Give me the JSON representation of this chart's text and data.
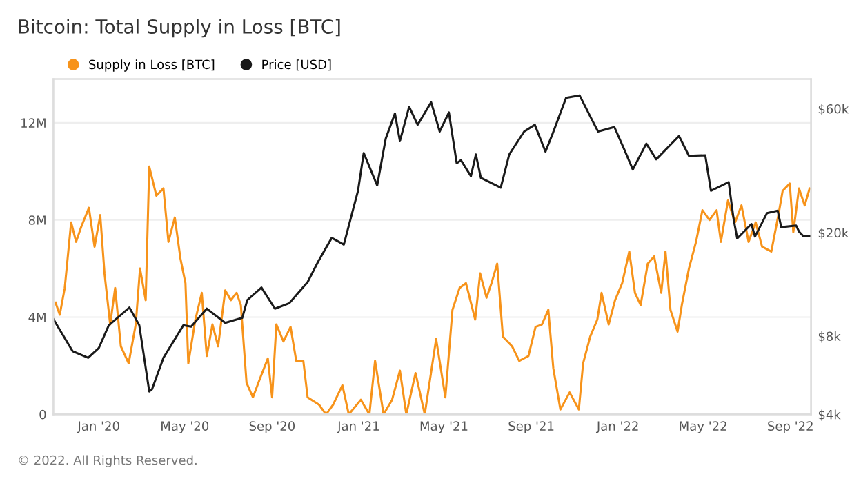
{
  "chart_data": {
    "type": "line",
    "title": "Bitcoin: Total Supply in Loss [BTC]",
    "annotations": [
      "© 2022. All Rights Reserved."
    ],
    "xlim": [
      "2019-10-29",
      "2022-09-30"
    ],
    "xticks": [
      {
        "value": "2020-01-01",
        "label": "Jan '20"
      },
      {
        "value": "2020-05-01",
        "label": "May '20"
      },
      {
        "value": "2020-09-01",
        "label": "Sep '20"
      },
      {
        "value": "2021-01-01",
        "label": "Jan '21"
      },
      {
        "value": "2021-05-01",
        "label": "May '21"
      },
      {
        "value": "2021-09-01",
        "label": "Sep '21"
      },
      {
        "value": "2022-01-01",
        "label": "Jan '22"
      },
      {
        "value": "2022-05-01",
        "label": "May '22"
      },
      {
        "value": "2022-09-01",
        "label": "Sep '22"
      }
    ],
    "ylim": [
      0,
      13800000
    ],
    "yticks": [
      0,
      {
        "value": 4000000,
        "label": "4M"
      },
      {
        "value": 8000000,
        "label": "8M"
      },
      {
        "value": 12000000,
        "label": "12M"
      }
    ],
    "y2lim": [
      4000,
      78000
    ],
    "y2ticks": [
      {
        "value": 4000,
        "label": "$4k"
      },
      {
        "value": 8000,
        "label": "$8k"
      },
      {
        "value": 20000,
        "label": "$20k"
      },
      {
        "value": 60000,
        "label": "$60k"
      }
    ],
    "log": "y2",
    "grid": "y",
    "legend": "top left",
    "marker": "none",
    "line_style": "solid",
    "series": [
      {
        "name": "Supply in Loss [BTC]",
        "color": "#f7931a",
        "axis": "y",
        "x": [
          "2019-11-01",
          "2019-11-07",
          "2019-11-14",
          "2019-11-23",
          "2019-11-30",
          "2019-12-07",
          "2019-12-18",
          "2019-12-26",
          "2020-01-03",
          "2020-01-09",
          "2020-01-17",
          "2020-01-24",
          "2020-02-01",
          "2020-02-12",
          "2020-02-22",
          "2020-02-28",
          "2020-03-07",
          "2020-03-12",
          "2020-03-22",
          "2020-04-01",
          "2020-04-08",
          "2020-04-17",
          "2020-04-25",
          "2020-05-02",
          "2020-05-06",
          "2020-05-16",
          "2020-05-25",
          "2020-06-01",
          "2020-06-09",
          "2020-06-17",
          "2020-06-27",
          "2020-07-05",
          "2020-07-13",
          "2020-07-19",
          "2020-07-27",
          "2020-08-05",
          "2020-08-14",
          "2020-08-26",
          "2020-09-01",
          "2020-09-07",
          "2020-09-17",
          "2020-09-27",
          "2020-10-05",
          "2020-10-15",
          "2020-10-21",
          "2020-11-06",
          "2020-11-16",
          "2020-11-26",
          "2020-12-09",
          "2020-12-18",
          "2021-01-04",
          "2021-01-16",
          "2021-01-24",
          "2021-02-05",
          "2021-02-17",
          "2021-02-28",
          "2021-03-09",
          "2021-03-22",
          "2021-04-04",
          "2021-04-20",
          "2021-05-03",
          "2021-05-13",
          "2021-05-23",
          "2021-06-01",
          "2021-06-14",
          "2021-06-21",
          "2021-06-30",
          "2021-07-07",
          "2021-07-15",
          "2021-07-23",
          "2021-08-05",
          "2021-08-15",
          "2021-08-28",
          "2021-09-07",
          "2021-09-16",
          "2021-09-25",
          "2021-10-02",
          "2021-10-12",
          "2021-10-25",
          "2021-11-07",
          "2021-11-13",
          "2021-11-23",
          "2021-12-03",
          "2021-12-09",
          "2021-12-19",
          "2021-12-28",
          "2022-01-07",
          "2022-01-17",
          "2022-01-25",
          "2022-02-02",
          "2022-02-12",
          "2022-02-21",
          "2022-03-03",
          "2022-03-09",
          "2022-03-16",
          "2022-03-26",
          "2022-04-01",
          "2022-04-11",
          "2022-04-21",
          "2022-04-30",
          "2022-05-10",
          "2022-05-20",
          "2022-05-26",
          "2022-06-05",
          "2022-06-15",
          "2022-06-24",
          "2022-07-04",
          "2022-07-14",
          "2022-07-23",
          "2022-08-05",
          "2022-08-15",
          "2022-08-21",
          "2022-08-31",
          "2022-09-05",
          "2022-09-13",
          "2022-09-21",
          "2022-09-28"
        ],
        "values": [
          4600000,
          4100000,
          5200000,
          7900000,
          7100000,
          7700000,
          8500000,
          6900000,
          8200000,
          5800000,
          3700000,
          5200000,
          2800000,
          2100000,
          3700000,
          6000000,
          4700000,
          10200000,
          9000000,
          9300000,
          7100000,
          8100000,
          6400000,
          5400000,
          2100000,
          3900000,
          5000000,
          2400000,
          3700000,
          2800000,
          5100000,
          4700000,
          5000000,
          4500000,
          1300000,
          700000,
          1400000,
          2300000,
          700000,
          3700000,
          3000000,
          3600000,
          2200000,
          2200000,
          700000,
          400000,
          0,
          400000,
          1200000,
          0,
          600000,
          0,
          2200000,
          0,
          600000,
          1800000,
          0,
          1700000,
          0,
          3100000,
          700000,
          4300000,
          5200000,
          5400000,
          3900000,
          5800000,
          4800000,
          5400000,
          6200000,
          3200000,
          2800000,
          2200000,
          2400000,
          3600000,
          3700000,
          4300000,
          1900000,
          200000,
          900000,
          200000,
          2100000,
          3200000,
          3900000,
          5000000,
          3700000,
          4700000,
          5400000,
          6700000,
          5000000,
          4500000,
          6200000,
          6500000,
          5000000,
          6700000,
          4300000,
          3400000,
          4500000,
          6000000,
          7100000,
          8400000,
          8000000,
          8400000,
          7100000,
          8800000,
          7900000,
          8600000,
          7100000,
          7900000,
          6900000,
          6700000,
          8200000,
          9200000,
          9500000,
          7500000,
          9300000,
          8600000,
          9300000
        ]
      },
      {
        "name": "Price [USD]",
        "color": "#1a1a1a",
        "axis": "y2",
        "x": [
          "2019-10-29",
          "2019-11-25",
          "2019-12-17",
          "2020-01-01",
          "2020-01-15",
          "2020-02-13",
          "2020-02-27",
          "2020-03-12",
          "2020-03-16",
          "2020-04-01",
          "2020-04-29",
          "2020-05-10",
          "2020-06-01",
          "2020-06-27",
          "2020-07-21",
          "2020-07-28",
          "2020-08-17",
          "2020-09-05",
          "2020-09-25",
          "2020-10-21",
          "2020-11-05",
          "2020-11-24",
          "2020-12-11",
          "2020-12-31",
          "2021-01-08",
          "2021-01-27",
          "2021-02-08",
          "2021-02-21",
          "2021-02-28",
          "2021-03-13",
          "2021-03-25",
          "2021-04-13",
          "2021-04-25",
          "2021-05-08",
          "2021-05-19",
          "2021-05-25",
          "2021-06-08",
          "2021-06-15",
          "2021-06-22",
          "2021-07-20",
          "2021-08-01",
          "2021-08-22",
          "2021-09-06",
          "2021-09-21",
          "2021-10-01",
          "2021-10-20",
          "2021-11-08",
          "2021-11-26",
          "2021-12-04",
          "2021-12-27",
          "2022-01-10",
          "2022-01-22",
          "2022-02-10",
          "2022-02-24",
          "2022-03-28",
          "2022-04-11",
          "2022-05-04",
          "2022-05-12",
          "2022-06-06",
          "2022-06-13",
          "2022-06-18",
          "2022-07-08",
          "2022-07-13",
          "2022-07-30",
          "2022-08-14",
          "2022-08-19",
          "2022-09-09",
          "2022-09-13",
          "2022-09-19",
          "2022-09-28"
        ],
        "values": [
          9300,
          7000,
          6600,
          7200,
          8800,
          10300,
          8800,
          4900,
          5000,
          6600,
          8800,
          8700,
          10200,
          9000,
          9400,
          11000,
          12300,
          10200,
          10700,
          12900,
          15500,
          19100,
          18000,
          29000,
          40500,
          30400,
          46000,
          57500,
          45000,
          61000,
          52000,
          63500,
          49000,
          58000,
          37000,
          38000,
          33000,
          40000,
          32500,
          29800,
          40000,
          49000,
          52000,
          41000,
          48000,
          66000,
          67500,
          54000,
          49000,
          51000,
          41800,
          35000,
          44000,
          38300,
          47100,
          39500,
          39700,
          29000,
          31300,
          22500,
          19000,
          21600,
          19300,
          23800,
          24300,
          21000,
          21300,
          20200,
          19400,
          19400
        ]
      }
    ]
  }
}
